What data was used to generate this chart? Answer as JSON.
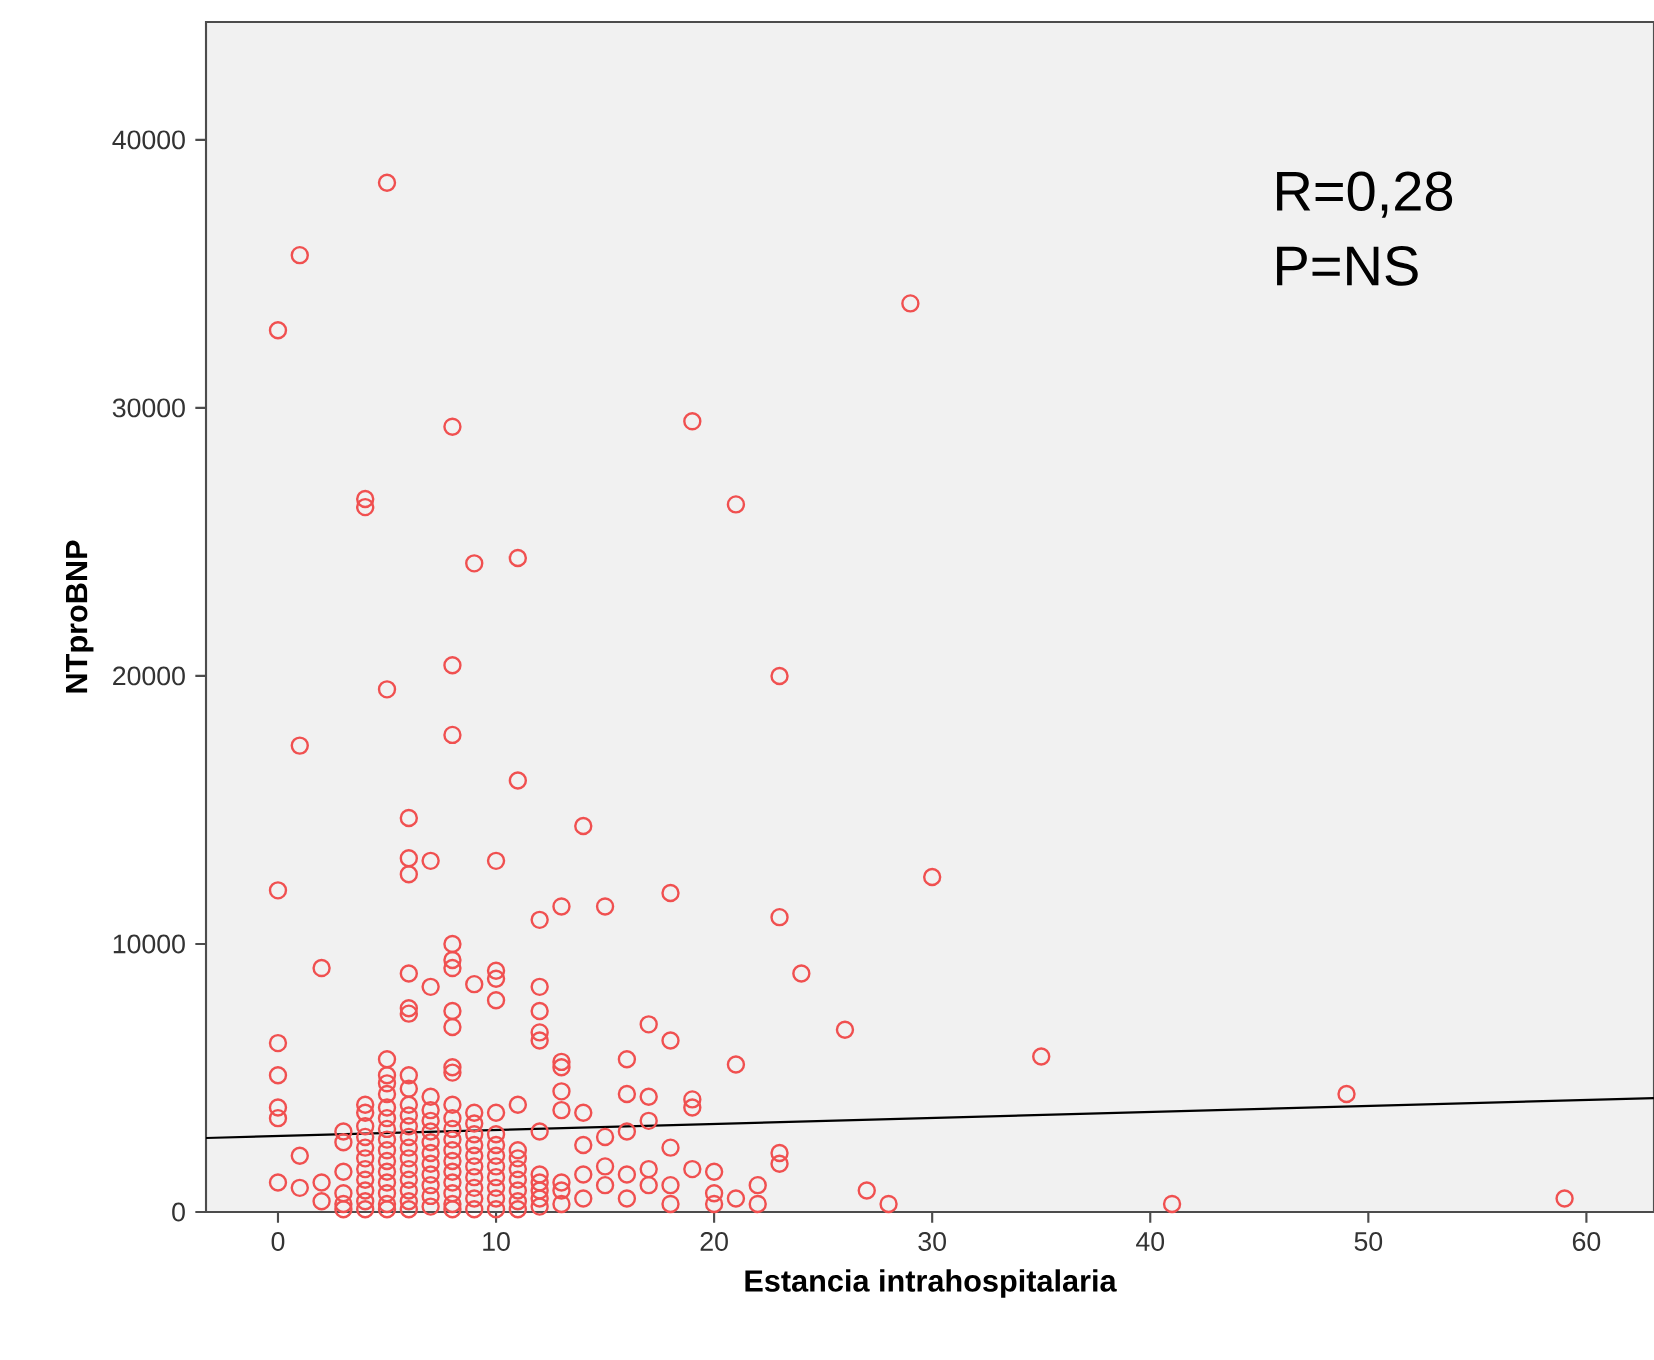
{
  "chart_data": {
    "type": "scatter",
    "xlabel": "Estancia intrahospitalaria",
    "ylabel": "NTproBNP",
    "annotations": [
      "R=0,28",
      "P=NS"
    ],
    "xlim": [
      -3.3,
      63.1
    ],
    "ylim": [
      0,
      44400
    ],
    "xticks": [
      0,
      10,
      20,
      30,
      40,
      50,
      60
    ],
    "yticks": [
      0,
      10000,
      20000,
      30000,
      40000
    ],
    "grid": false,
    "series": [
      {
        "marker": "circle",
        "color": "#f05050",
        "x": [
          5,
          1,
          0,
          8,
          19,
          4,
          4,
          21,
          9,
          11,
          29,
          30,
          24,
          26,
          35,
          49,
          27,
          28,
          41,
          59,
          8,
          5,
          23,
          1,
          8,
          11,
          6,
          14,
          6,
          6,
          7,
          10,
          0,
          18,
          13,
          15,
          12,
          23,
          2,
          8,
          8,
          8,
          6,
          7,
          9,
          10,
          10,
          10,
          12,
          12,
          12,
          12,
          6,
          6,
          8,
          8,
          17,
          18,
          0,
          0,
          0,
          0,
          5,
          5,
          6,
          8,
          8,
          13,
          13,
          16,
          21,
          13,
          16,
          17,
          19,
          19,
          9,
          10,
          11,
          14,
          13,
          17,
          16,
          12,
          1,
          0,
          1,
          2,
          2,
          18,
          19,
          20,
          21,
          22,
          22,
          23,
          23,
          15,
          15,
          14,
          14,
          14,
          16,
          16,
          17,
          17,
          18,
          18,
          20,
          20,
          13,
          13,
          15,
          3,
          3,
          3,
          3,
          3,
          3,
          4,
          4,
          4,
          4,
          4,
          4,
          4,
          4,
          4,
          4,
          4,
          5,
          5,
          5,
          5,
          5,
          5,
          5,
          5,
          5,
          5,
          5,
          5,
          5,
          6,
          6,
          6,
          6,
          6,
          6,
          6,
          6,
          6,
          6,
          6,
          6,
          7,
          7,
          7,
          7,
          7,
          7,
          7,
          7,
          7,
          7,
          7,
          8,
          8,
          8,
          8,
          8,
          8,
          8,
          8,
          8,
          8,
          8,
          9,
          9,
          9,
          9,
          9,
          9,
          9,
          9,
          9,
          10,
          10,
          10,
          10,
          10,
          10,
          10,
          10,
          11,
          11,
          11,
          11,
          11,
          11,
          11,
          12,
          12,
          12,
          12,
          12,
          13
        ],
        "values": [
          38400,
          35700,
          32900,
          29300,
          29500,
          26600,
          26300,
          26400,
          24200,
          24400,
          33900,
          12500,
          8900,
          6800,
          5800,
          4400,
          800,
          300,
          300,
          500,
          20400,
          19500,
          20000,
          17400,
          17800,
          16100,
          14700,
          14400,
          13200,
          12600,
          13100,
          13100,
          12000,
          11900,
          11400,
          11400,
          10900,
          11000,
          9100,
          10000,
          9400,
          9100,
          8900,
          8400,
          8500,
          9000,
          8700,
          7900,
          8400,
          7500,
          6700,
          6400,
          7600,
          7400,
          7500,
          6900,
          7000,
          6400,
          6300,
          5100,
          3900,
          3500,
          5700,
          5100,
          5100,
          5400,
          5200,
          5600,
          5400,
          5700,
          5500,
          4500,
          4400,
          4300,
          4200,
          3900,
          3700,
          3700,
          4000,
          3700,
          3800,
          3400,
          3000,
          3000,
          2100,
          1100,
          900,
          1100,
          400,
          2400,
          1600,
          1500,
          500,
          1000,
          300,
          2200,
          1800,
          2800,
          1700,
          2500,
          1400,
          500,
          1400,
          500,
          1600,
          1000,
          1000,
          300,
          700,
          300,
          1100,
          300,
          1000,
          3000,
          2600,
          1500,
          700,
          300,
          100,
          4000,
          3700,
          3200,
          2800,
          2400,
          2000,
          1600,
          1200,
          800,
          400,
          100,
          4800,
          4400,
          3900,
          3500,
          3100,
          2700,
          2300,
          1900,
          1500,
          1100,
          700,
          300,
          100,
          4600,
          4000,
          3600,
          3200,
          2800,
          2400,
          2000,
          1600,
          1200,
          800,
          400,
          100,
          4300,
          3800,
          3400,
          3000,
          2600,
          2200,
          1800,
          1400,
          1000,
          600,
          200,
          4000,
          3500,
          3100,
          2700,
          2300,
          1900,
          1500,
          1100,
          700,
          300,
          100,
          3300,
          2900,
          2500,
          2100,
          1700,
          1300,
          900,
          500,
          100,
          2900,
          2500,
          2100,
          1700,
          1300,
          900,
          500,
          100,
          2300,
          2000,
          1600,
          1200,
          800,
          400,
          100,
          1400,
          1100,
          800,
          500,
          200,
          800
        ]
      },
      {
        "type": "line",
        "color": "#000000",
        "x": [
          -3.3,
          63.1
        ],
        "values": [
          2760,
          4250
        ]
      }
    ]
  }
}
